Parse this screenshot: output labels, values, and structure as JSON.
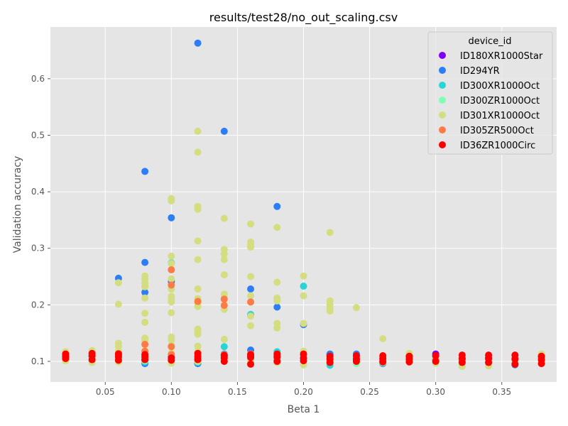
{
  "chart_data": {
    "type": "scatter",
    "title": "results/test28/no_out_scaling.csv",
    "xlabel": "Beta 1",
    "ylabel": "Validation accuracy",
    "xlim": [
      0.0085,
      0.3915
    ],
    "ylim": [
      0.0635,
      0.6915
    ],
    "xticks": [
      "0.05",
      "0.10",
      "0.15",
      "0.20",
      "0.25",
      "0.30",
      "0.35"
    ],
    "yticks": [
      "0.1",
      "0.2",
      "0.3",
      "0.4",
      "0.5",
      "0.6"
    ],
    "grid": true,
    "legend": {
      "title": "device_id",
      "position": "top-right"
    },
    "series": [
      {
        "name": "ID180XR1000Star",
        "color": "#8000ff",
        "points": [
          [
            0.02,
            0.108
          ],
          [
            0.04,
            0.109
          ],
          [
            0.06,
            0.11
          ],
          [
            0.08,
            0.102
          ],
          [
            0.1,
            0.108
          ],
          [
            0.12,
            0.097
          ],
          [
            0.14,
            0.11
          ],
          [
            0.16,
            0.109
          ],
          [
            0.18,
            0.11
          ],
          [
            0.2,
            0.106
          ],
          [
            0.22,
            0.112
          ],
          [
            0.24,
            0.109
          ],
          [
            0.26,
            0.101
          ],
          [
            0.28,
            0.107
          ],
          [
            0.3,
            0.113
          ],
          [
            0.32,
            0.104
          ],
          [
            0.34,
            0.105
          ],
          [
            0.36,
            0.107
          ],
          [
            0.38,
            0.108
          ]
        ]
      },
      {
        "name": "ID294YR",
        "color": "#2c7ef7",
        "points": [
          [
            0.02,
            0.109
          ],
          [
            0.04,
            0.107
          ],
          [
            0.06,
            0.247
          ],
          [
            0.06,
            0.112
          ],
          [
            0.08,
            0.436
          ],
          [
            0.08,
            0.275
          ],
          [
            0.08,
            0.222
          ],
          [
            0.08,
            0.104
          ],
          [
            0.08,
            0.096
          ],
          [
            0.1,
            0.354
          ],
          [
            0.1,
            0.241
          ],
          [
            0.1,
            0.108
          ],
          [
            0.12,
            0.663
          ],
          [
            0.12,
            0.104
          ],
          [
            0.12,
            0.096
          ],
          [
            0.14,
            0.507
          ],
          [
            0.14,
            0.113
          ],
          [
            0.16,
            0.228
          ],
          [
            0.16,
            0.182
          ],
          [
            0.16,
            0.12
          ],
          [
            0.18,
            0.374
          ],
          [
            0.18,
            0.196
          ],
          [
            0.18,
            0.106
          ],
          [
            0.2,
            0.165
          ],
          [
            0.2,
            0.105
          ],
          [
            0.22,
            0.113
          ],
          [
            0.22,
            0.097
          ],
          [
            0.24,
            0.113
          ],
          [
            0.26,
            0.096
          ],
          [
            0.28,
            0.108
          ],
          [
            0.3,
            0.109
          ],
          [
            0.32,
            0.104
          ],
          [
            0.34,
            0.107
          ],
          [
            0.36,
            0.094
          ],
          [
            0.38,
            0.105
          ]
        ]
      },
      {
        "name": "ID300XR1000Oct",
        "color": "#26d6d6",
        "points": [
          [
            0.02,
            0.104
          ],
          [
            0.04,
            0.101
          ],
          [
            0.06,
            0.106
          ],
          [
            0.08,
            0.099
          ],
          [
            0.1,
            0.274
          ],
          [
            0.1,
            0.103
          ],
          [
            0.12,
            0.098
          ],
          [
            0.14,
            0.126
          ],
          [
            0.14,
            0.107
          ],
          [
            0.16,
            0.183
          ],
          [
            0.16,
            0.106
          ],
          [
            0.18,
            0.117
          ],
          [
            0.18,
            0.102
          ],
          [
            0.2,
            0.233
          ],
          [
            0.2,
            0.101
          ],
          [
            0.22,
            0.093
          ],
          [
            0.24,
            0.101
          ],
          [
            0.26,
            0.097
          ],
          [
            0.28,
            0.103
          ],
          [
            0.3,
            0.104
          ],
          [
            0.32,
            0.1
          ],
          [
            0.34,
            0.098
          ],
          [
            0.36,
            0.097
          ],
          [
            0.38,
            0.099
          ]
        ]
      },
      {
        "name": "ID300ZR1000Oct",
        "color": "#80ffb4",
        "points": [
          [
            0.02,
            0.103
          ],
          [
            0.04,
            0.1
          ],
          [
            0.06,
            0.104
          ],
          [
            0.08,
            0.101
          ],
          [
            0.1,
            0.097
          ],
          [
            0.12,
            0.1
          ],
          [
            0.14,
            0.102
          ],
          [
            0.16,
            0.099
          ],
          [
            0.18,
            0.098
          ],
          [
            0.2,
            0.094
          ],
          [
            0.22,
            0.1
          ],
          [
            0.24,
            0.096
          ],
          [
            0.26,
            0.099
          ],
          [
            0.28,
            0.1
          ],
          [
            0.3,
            0.097
          ],
          [
            0.32,
            0.095
          ],
          [
            0.34,
            0.096
          ],
          [
            0.36,
            0.098
          ],
          [
            0.38,
            0.1
          ]
        ]
      },
      {
        "name": "ID301XR1000Oct",
        "color": "#d4dd80",
        "points": [
          [
            0.02,
            0.117
          ],
          [
            0.02,
            0.112
          ],
          [
            0.02,
            0.106
          ],
          [
            0.02,
            0.101
          ],
          [
            0.04,
            0.119
          ],
          [
            0.04,
            0.113
          ],
          [
            0.04,
            0.107
          ],
          [
            0.04,
            0.098
          ],
          [
            0.06,
            0.239
          ],
          [
            0.06,
            0.201
          ],
          [
            0.06,
            0.132
          ],
          [
            0.06,
            0.126
          ],
          [
            0.06,
            0.118
          ],
          [
            0.06,
            0.108
          ],
          [
            0.06,
            0.099
          ],
          [
            0.08,
            0.251
          ],
          [
            0.08,
            0.245
          ],
          [
            0.08,
            0.238
          ],
          [
            0.08,
            0.232
          ],
          [
            0.08,
            0.212
          ],
          [
            0.08,
            0.185
          ],
          [
            0.08,
            0.169
          ],
          [
            0.08,
            0.141
          ],
          [
            0.08,
            0.136
          ],
          [
            0.08,
            0.118
          ],
          [
            0.08,
            0.112
          ],
          [
            0.08,
            0.105
          ],
          [
            0.1,
            0.388
          ],
          [
            0.1,
            0.384
          ],
          [
            0.1,
            0.286
          ],
          [
            0.1,
            0.273
          ],
          [
            0.1,
            0.246
          ],
          [
            0.1,
            0.228
          ],
          [
            0.1,
            0.215
          ],
          [
            0.1,
            0.21
          ],
          [
            0.1,
            0.205
          ],
          [
            0.1,
            0.186
          ],
          [
            0.1,
            0.143
          ],
          [
            0.1,
            0.138
          ],
          [
            0.1,
            0.128
          ],
          [
            0.1,
            0.115
          ],
          [
            0.1,
            0.102
          ],
          [
            0.1,
            0.097
          ],
          [
            0.12,
            0.507
          ],
          [
            0.12,
            0.47
          ],
          [
            0.12,
            0.374
          ],
          [
            0.12,
            0.369
          ],
          [
            0.12,
            0.313
          ],
          [
            0.12,
            0.28
          ],
          [
            0.12,
            0.228
          ],
          [
            0.12,
            0.211
          ],
          [
            0.12,
            0.203
          ],
          [
            0.12,
            0.197
          ],
          [
            0.12,
            0.157
          ],
          [
            0.12,
            0.153
          ],
          [
            0.12,
            0.148
          ],
          [
            0.12,
            0.127
          ],
          [
            0.12,
            0.118
          ],
          [
            0.12,
            0.1
          ],
          [
            0.14,
            0.353
          ],
          [
            0.14,
            0.298
          ],
          [
            0.14,
            0.29
          ],
          [
            0.14,
            0.28
          ],
          [
            0.14,
            0.253
          ],
          [
            0.14,
            0.219
          ],
          [
            0.14,
            0.213
          ],
          [
            0.14,
            0.192
          ],
          [
            0.14,
            0.139
          ],
          [
            0.14,
            0.112
          ],
          [
            0.14,
            0.104
          ],
          [
            0.16,
            0.343
          ],
          [
            0.16,
            0.311
          ],
          [
            0.16,
            0.306
          ],
          [
            0.16,
            0.302
          ],
          [
            0.16,
            0.25
          ],
          [
            0.16,
            0.216
          ],
          [
            0.16,
            0.18
          ],
          [
            0.16,
            0.163
          ],
          [
            0.16,
            0.113
          ],
          [
            0.16,
            0.1
          ],
          [
            0.18,
            0.337
          ],
          [
            0.18,
            0.24
          ],
          [
            0.18,
            0.212
          ],
          [
            0.18,
            0.207
          ],
          [
            0.18,
            0.167
          ],
          [
            0.18,
            0.159
          ],
          [
            0.18,
            0.11
          ],
          [
            0.18,
            0.098
          ],
          [
            0.2,
            0.251
          ],
          [
            0.2,
            0.216
          ],
          [
            0.2,
            0.167
          ],
          [
            0.2,
            0.118
          ],
          [
            0.2,
            0.094
          ],
          [
            0.22,
            0.328
          ],
          [
            0.22,
            0.207
          ],
          [
            0.22,
            0.2
          ],
          [
            0.22,
            0.194
          ],
          [
            0.22,
            0.189
          ],
          [
            0.22,
            0.108
          ],
          [
            0.22,
            0.098
          ],
          [
            0.24,
            0.195
          ],
          [
            0.24,
            0.109
          ],
          [
            0.24,
            0.1
          ],
          [
            0.26,
            0.14
          ],
          [
            0.26,
            0.106
          ],
          [
            0.26,
            0.098
          ],
          [
            0.28,
            0.114
          ],
          [
            0.28,
            0.106
          ],
          [
            0.28,
            0.099
          ],
          [
            0.3,
            0.108
          ],
          [
            0.3,
            0.097
          ],
          [
            0.32,
            0.107
          ],
          [
            0.32,
            0.091
          ],
          [
            0.34,
            0.104
          ],
          [
            0.34,
            0.092
          ],
          [
            0.36,
            0.108
          ],
          [
            0.36,
            0.099
          ],
          [
            0.38,
            0.113
          ],
          [
            0.38,
            0.104
          ],
          [
            0.38,
            0.097
          ]
        ]
      },
      {
        "name": "ID305ZR500Oct",
        "color": "#ff7a45",
        "points": [
          [
            0.02,
            0.113
          ],
          [
            0.04,
            0.111
          ],
          [
            0.06,
            0.114
          ],
          [
            0.08,
            0.13
          ],
          [
            0.08,
            0.118
          ],
          [
            0.1,
            0.262
          ],
          [
            0.1,
            0.235
          ],
          [
            0.1,
            0.126
          ],
          [
            0.1,
            0.112
          ],
          [
            0.12,
            0.206
          ],
          [
            0.12,
            0.111
          ],
          [
            0.14,
            0.21
          ],
          [
            0.14,
            0.199
          ],
          [
            0.14,
            0.108
          ],
          [
            0.16,
            0.205
          ],
          [
            0.16,
            0.113
          ],
          [
            0.18,
            0.108
          ],
          [
            0.2,
            0.111
          ],
          [
            0.22,
            0.104
          ],
          [
            0.24,
            0.105
          ],
          [
            0.26,
            0.104
          ],
          [
            0.28,
            0.107
          ],
          [
            0.3,
            0.102
          ],
          [
            0.32,
            0.105
          ],
          [
            0.34,
            0.106
          ],
          [
            0.36,
            0.104
          ],
          [
            0.38,
            0.107
          ]
        ]
      },
      {
        "name": "ID36ZR1000Circ",
        "color": "#ff0000",
        "points": [
          [
            0.02,
            0.113
          ],
          [
            0.02,
            0.109
          ],
          [
            0.02,
            0.105
          ],
          [
            0.04,
            0.114
          ],
          [
            0.04,
            0.11
          ],
          [
            0.04,
            0.103
          ],
          [
            0.06,
            0.113
          ],
          [
            0.06,
            0.108
          ],
          [
            0.06,
            0.102
          ],
          [
            0.08,
            0.112
          ],
          [
            0.08,
            0.108
          ],
          [
            0.08,
            0.103
          ],
          [
            0.1,
            0.106
          ],
          [
            0.1,
            0.102
          ],
          [
            0.12,
            0.114
          ],
          [
            0.12,
            0.108
          ],
          [
            0.12,
            0.103
          ],
          [
            0.14,
            0.111
          ],
          [
            0.14,
            0.106
          ],
          [
            0.14,
            0.1
          ],
          [
            0.16,
            0.112
          ],
          [
            0.16,
            0.107
          ],
          [
            0.16,
            0.095
          ],
          [
            0.18,
            0.113
          ],
          [
            0.18,
            0.108
          ],
          [
            0.18,
            0.1
          ],
          [
            0.2,
            0.113
          ],
          [
            0.2,
            0.106
          ],
          [
            0.2,
            0.101
          ],
          [
            0.22,
            0.109
          ],
          [
            0.22,
            0.104
          ],
          [
            0.22,
            0.098
          ],
          [
            0.24,
            0.11
          ],
          [
            0.24,
            0.104
          ],
          [
            0.24,
            0.1
          ],
          [
            0.26,
            0.11
          ],
          [
            0.26,
            0.105
          ],
          [
            0.26,
            0.099
          ],
          [
            0.28,
            0.109
          ],
          [
            0.28,
            0.104
          ],
          [
            0.28,
            0.099
          ],
          [
            0.3,
            0.11
          ],
          [
            0.3,
            0.1
          ],
          [
            0.32,
            0.111
          ],
          [
            0.32,
            0.105
          ],
          [
            0.32,
            0.098
          ],
          [
            0.34,
            0.111
          ],
          [
            0.34,
            0.105
          ],
          [
            0.34,
            0.098
          ],
          [
            0.36,
            0.111
          ],
          [
            0.36,
            0.104
          ],
          [
            0.36,
            0.095
          ],
          [
            0.38,
            0.109
          ],
          [
            0.38,
            0.103
          ],
          [
            0.38,
            0.096
          ]
        ]
      }
    ]
  }
}
